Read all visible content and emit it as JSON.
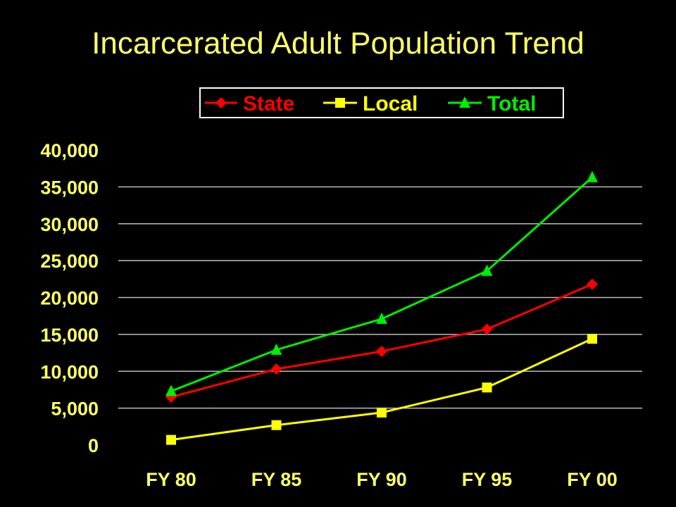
{
  "chart_data": {
    "type": "line",
    "title": "Incarcerated Adult Population Trend",
    "categories": [
      "FY 80",
      "FY 85",
      "FY 90",
      "FY 95",
      "FY 00"
    ],
    "ylim": [
      0,
      40000
    ],
    "yticks": [
      0,
      5000,
      10000,
      15000,
      20000,
      25000,
      30000,
      35000,
      40000
    ],
    "ytick_labels": [
      "0",
      "5,000",
      "10,000",
      "15,000",
      "20,000",
      "25,000",
      "30,000",
      "35,000",
      "40,000"
    ],
    "grid": true,
    "legend_position": "top",
    "series": [
      {
        "name": "State",
        "color": "#ff0000",
        "marker": "diamond",
        "values": [
          6500,
          10300,
          12700,
          15700,
          21800
        ]
      },
      {
        "name": "Local",
        "color": "#ffff00",
        "marker": "square",
        "values": [
          700,
          2700,
          4400,
          7800,
          14400
        ]
      },
      {
        "name": "Total",
        "color": "#00ee00",
        "marker": "triangle",
        "values": [
          7300,
          12900,
          17100,
          23600,
          36300
        ]
      }
    ]
  },
  "colors": {
    "background": "#000000",
    "text": "#ffff66",
    "grid": "#bbbbbb",
    "legend_border": "#ffffff"
  }
}
